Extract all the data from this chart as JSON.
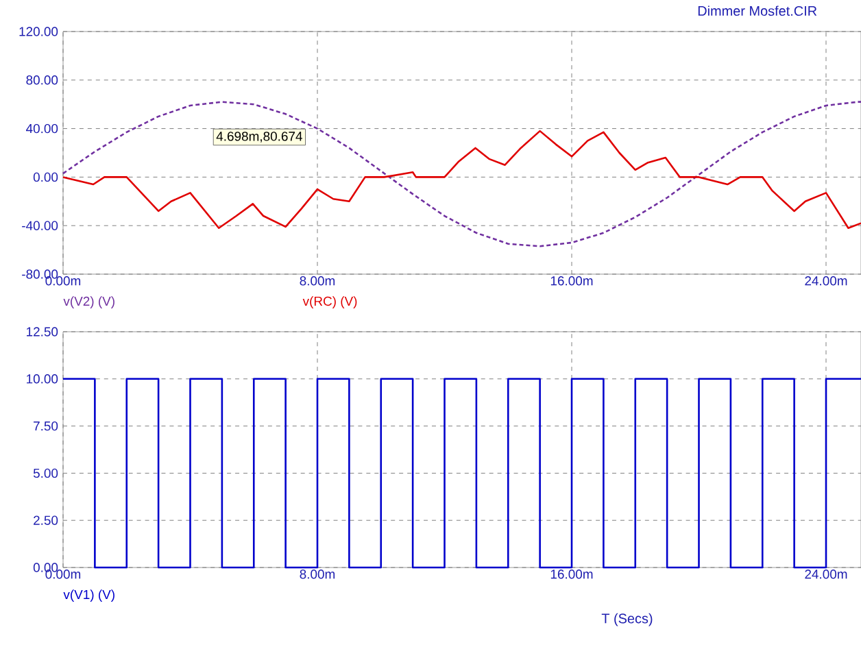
{
  "chart_data": [
    {
      "type": "line",
      "title": "Dimmer Mosfet.CIR",
      "xlim": [
        0,
        25.1
      ],
      "xticks": [
        {
          "value": 0,
          "label": "0.00m"
        },
        {
          "value": 8,
          "label": "8.00m"
        },
        {
          "value": 16,
          "label": "16.00m"
        },
        {
          "value": 24,
          "label": "24.00m"
        }
      ],
      "ylim": [
        -80,
        120
      ],
      "yticks": [
        {
          "value": -80,
          "label": "-80.00"
        },
        {
          "value": -40,
          "label": "-40.00"
        },
        {
          "value": 0,
          "label": "0.00"
        },
        {
          "value": 40,
          "label": "40.00"
        },
        {
          "value": 80,
          "label": "80.00"
        },
        {
          "value": 120,
          "label": "120.00"
        }
      ],
      "grid": true,
      "legend": "bottom",
      "annotations": [
        "4.698m,80.674"
      ],
      "series": [
        {
          "name": "v(V2) (V)",
          "color": "#7030a0",
          "line_style": "dashed",
          "x": [
            0,
            1,
            2,
            3,
            4,
            5,
            6,
            7,
            8,
            9,
            10,
            11,
            12,
            13,
            14,
            15,
            16,
            17,
            18,
            19,
            20,
            21,
            22,
            23,
            24,
            25,
            25.1
          ],
          "values": [
            3,
            21,
            37,
            50,
            59,
            62,
            60,
            52,
            40,
            24,
            5,
            -14,
            -32,
            -46,
            -55,
            -57,
            -54,
            -46,
            -33,
            -17,
            2,
            21,
            37,
            50,
            59,
            62,
            62
          ]
        },
        {
          "name": "v(RC) (V)",
          "color": "#e00000",
          "line_style": "solid",
          "x": [
            0,
            0.95,
            1.3,
            2.0,
            3.0,
            3.4,
            4.0,
            4.9,
            5.45,
            5.97,
            6.3,
            7.0,
            7.5,
            8.0,
            8.5,
            9.0,
            9.5,
            10.1,
            11.0,
            11.1,
            12.0,
            12.45,
            12.97,
            13.4,
            13.9,
            14.4,
            15.0,
            15.5,
            16.0,
            16.5,
            17.0,
            17.5,
            18.0,
            18.4,
            18.95,
            19.4,
            20.0,
            20.9,
            21.3,
            22.0,
            22.3,
            23.0,
            23.35,
            24.0,
            24.7,
            25.1
          ],
          "values": [
            0,
            -6,
            0,
            0,
            -28,
            -20,
            -13,
            -42,
            -32,
            -22,
            -32,
            -41,
            -26,
            -10,
            -18,
            -20,
            0,
            0,
            4,
            0,
            0,
            13,
            24,
            15,
            10,
            24,
            38,
            27,
            17,
            30,
            37,
            20,
            6,
            12,
            16,
            0,
            0,
            -6,
            0,
            0,
            -11,
            -28,
            -20,
            -13,
            -42,
            -38
          ]
        }
      ]
    },
    {
      "type": "step",
      "xlabel": "T (Secs)",
      "xlim": [
        0,
        25.1
      ],
      "xticks": [
        {
          "value": 0,
          "label": "0.00m"
        },
        {
          "value": 8,
          "label": "8.00m"
        },
        {
          "value": 16,
          "label": "16.00m"
        },
        {
          "value": 24,
          "label": "24.00m"
        }
      ],
      "ylim": [
        0,
        12.5
      ],
      "yticks": [
        {
          "value": 0,
          "label": "0.00"
        },
        {
          "value": 2.5,
          "label": "2.50"
        },
        {
          "value": 5,
          "label": "5.00"
        },
        {
          "value": 7.5,
          "label": "7.50"
        },
        {
          "value": 10,
          "label": "10.00"
        },
        {
          "value": 12.5,
          "label": "12.50"
        }
      ],
      "grid": true,
      "legend": "bottom",
      "series": [
        {
          "name": "v(V1) (V)",
          "color": "#0000cc",
          "x": [
            0,
            1,
            2,
            3,
            4,
            5,
            6,
            7,
            8,
            9,
            10,
            11,
            12,
            13,
            14,
            15,
            16,
            17,
            18,
            19,
            20,
            21,
            22,
            23,
            24,
            25.1
          ],
          "values": [
            10,
            0,
            10,
            0,
            10,
            0,
            10,
            0,
            10,
            0,
            10,
            0,
            10,
            0,
            10,
            0,
            10,
            0,
            10,
            0,
            10,
            0,
            10,
            0,
            10,
            10
          ]
        }
      ]
    }
  ]
}
